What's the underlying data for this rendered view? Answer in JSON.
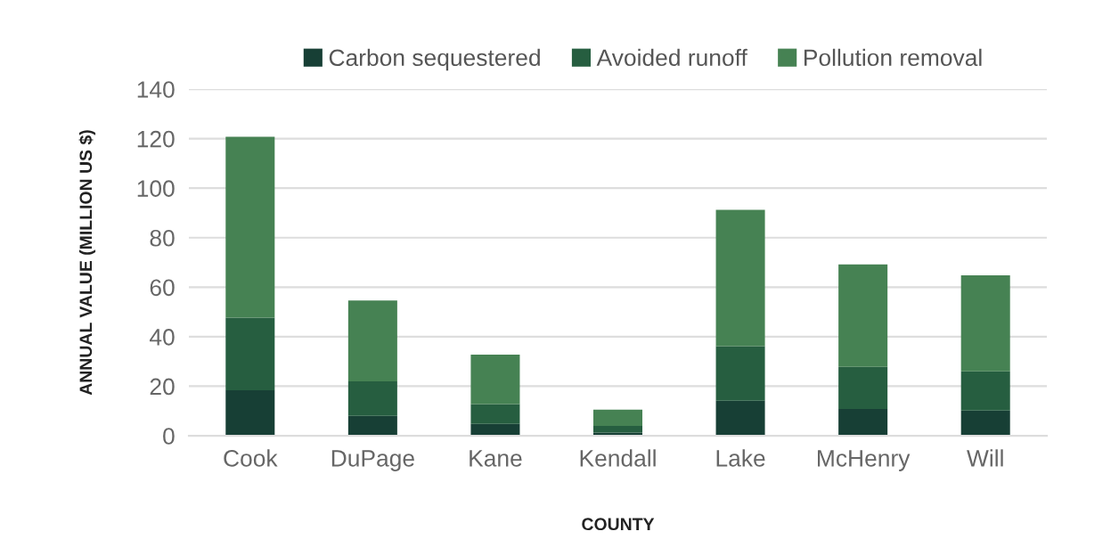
{
  "chart_data": {
    "type": "bar",
    "stacked": true,
    "xlabel": "COUNTY",
    "ylabel": "ANNUAL VALUE (MILLION US $)",
    "categories": [
      "Cook",
      "DuPage",
      "Kane",
      "Kendall",
      "Lake",
      "McHenry",
      "Will"
    ],
    "series": [
      {
        "name": "Carbon sequestered",
        "color": "#173f35",
        "values": [
          18.4,
          8.0,
          4.8,
          1.3,
          14.1,
          10.8,
          10.2
        ]
      },
      {
        "name": "Avoided runoff",
        "color": "#265e40",
        "values": [
          29.3,
          14.0,
          8.0,
          2.7,
          22.1,
          17.0,
          15.8
        ]
      },
      {
        "name": "Pollution removal",
        "color": "#468253",
        "values": [
          73.1,
          32.6,
          20.0,
          6.5,
          55.0,
          41.4,
          38.8
        ]
      }
    ],
    "ylim": [
      0,
      140
    ],
    "yticks": [
      0,
      20,
      40,
      60,
      80,
      100,
      120,
      140
    ],
    "grid": "y",
    "legend": "top"
  }
}
